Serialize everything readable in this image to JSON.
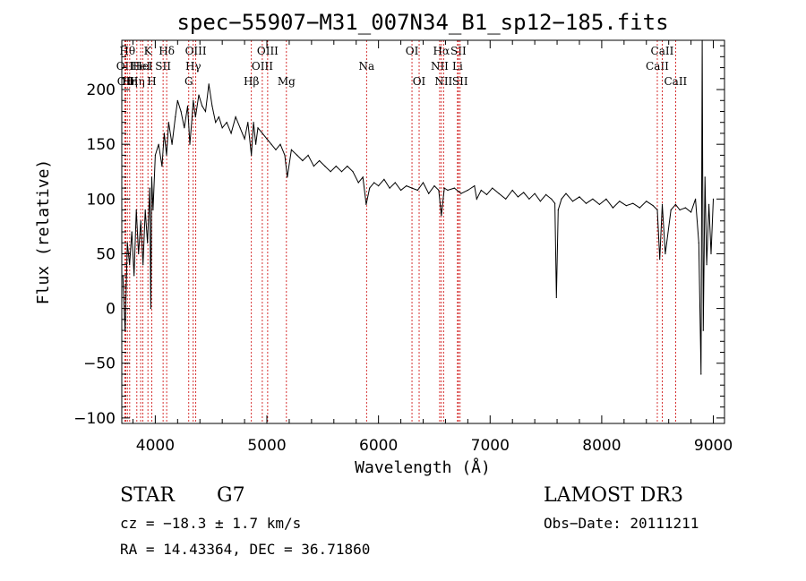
{
  "chart_data": {
    "type": "line",
    "title": "spec−55907−M31_007N34_B1_sp12−185.fits",
    "xlabel": "Wavelength (Å)",
    "ylabel": "Flux (relative)",
    "xlim": [
      3700,
      9100
    ],
    "ylim": [
      -105,
      245
    ],
    "xticks": [
      4000,
      5000,
      6000,
      7000,
      8000,
      9000
    ],
    "xtick_labels": [
      "4000",
      "5000",
      "6000",
      "7000",
      "8000",
      "9000"
    ],
    "yticks": [
      -100,
      -50,
      0,
      50,
      100,
      150,
      200
    ],
    "ytick_labels": [
      "−100",
      "−50",
      "0",
      "50",
      "100",
      "150",
      "200"
    ],
    "series": [
      {
        "name": "flux",
        "x": [
          3710,
          3730,
          3750,
          3770,
          3790,
          3810,
          3830,
          3850,
          3870,
          3890,
          3910,
          3930,
          3950,
          3960,
          3968,
          3980,
          4000,
          4030,
          4060,
          4080,
          4101,
          4120,
          4150,
          4180,
          4200,
          4230,
          4260,
          4290,
          4310,
          4330,
          4340,
          4360,
          4390,
          4420,
          4450,
          4480,
          4510,
          4540,
          4570,
          4600,
          4640,
          4680,
          4720,
          4760,
          4800,
          4830,
          4861,
          4880,
          4900,
          4920,
          4960,
          5000,
          5040,
          5080,
          5120,
          5160,
          5183,
          5220,
          5270,
          5320,
          5370,
          5420,
          5470,
          5520,
          5570,
          5620,
          5670,
          5720,
          5770,
          5820,
          5860,
          5890,
          5920,
          5960,
          6000,
          6050,
          6100,
          6150,
          6200,
          6250,
          6300,
          6350,
          6400,
          6450,
          6500,
          6540,
          6563,
          6590,
          6620,
          6680,
          6740,
          6800,
          6860,
          6880,
          6920,
          6970,
          7020,
          7080,
          7140,
          7200,
          7250,
          7300,
          7350,
          7400,
          7450,
          7500,
          7550,
          7580,
          7594,
          7610,
          7640,
          7680,
          7740,
          7800,
          7860,
          7920,
          7980,
          8040,
          8100,
          8160,
          8220,
          8280,
          8340,
          8400,
          8460,
          8498,
          8520,
          8542,
          8570,
          8620,
          8662,
          8700,
          8750,
          8800,
          8840,
          8870,
          8890,
          8900,
          8910,
          8925,
          8940,
          8960,
          8980,
          9000
        ],
        "y": [
          30,
          -20,
          60,
          40,
          70,
          30,
          90,
          50,
          80,
          40,
          90,
          60,
          110,
          0,
          120,
          90,
          140,
          150,
          130,
          160,
          140,
          170,
          150,
          175,
          190,
          180,
          165,
          185,
          150,
          175,
          190,
          175,
          195,
          185,
          180,
          205,
          185,
          170,
          175,
          165,
          170,
          160,
          175,
          165,
          155,
          170,
          140,
          170,
          150,
          165,
          160,
          155,
          150,
          145,
          150,
          140,
          120,
          145,
          140,
          135,
          140,
          130,
          135,
          130,
          125,
          130,
          125,
          130,
          125,
          115,
          120,
          95,
          110,
          115,
          112,
          118,
          110,
          115,
          108,
          112,
          110,
          108,
          115,
          105,
          112,
          108,
          85,
          110,
          108,
          110,
          105,
          108,
          112,
          100,
          108,
          104,
          110,
          105,
          100,
          108,
          102,
          106,
          100,
          105,
          98,
          104,
          100,
          96,
          10,
          90,
          100,
          105,
          98,
          102,
          96,
          100,
          95,
          100,
          92,
          98,
          94,
          96,
          92,
          98,
          94,
          90,
          45,
          95,
          50,
          90,
          95,
          90,
          92,
          88,
          100,
          60,
          -60,
          245,
          -20,
          120,
          40,
          95,
          50,
          100
        ]
      }
    ],
    "line_markers": [
      {
        "x": 3727,
        "label": "OII",
        "row": 2
      },
      {
        "x": 3735,
        "label": "OII",
        "row": 3
      },
      {
        "x": 3750,
        "label": "Hθ",
        "row": 1
      },
      {
        "x": 3771,
        "label": "Hη",
        "row": 3
      },
      {
        "x": 3835,
        "label": "Hη",
        "row": 3
      },
      {
        "x": 3869,
        "label": "HeI",
        "row": 2
      },
      {
        "x": 3889,
        "label": "HeI",
        "row": 2
      },
      {
        "x": 3934,
        "label": "K",
        "row": 1
      },
      {
        "x": 3969,
        "label": "H",
        "row": 3
      },
      {
        "x": 4070,
        "label": "SII",
        "row": 2
      },
      {
        "x": 4102,
        "label": "Hδ",
        "row": 1
      },
      {
        "x": 4300,
        "label": "G",
        "row": 3
      },
      {
        "x": 4340,
        "label": "Hγ",
        "row": 2
      },
      {
        "x": 4363,
        "label": "OIII",
        "row": 1
      },
      {
        "x": 4861,
        "label": "Hβ",
        "row": 3
      },
      {
        "x": 4959,
        "label": "OIII",
        "row": 2
      },
      {
        "x": 5007,
        "label": "OIII",
        "row": 1
      },
      {
        "x": 5175,
        "label": "Mg",
        "row": 3
      },
      {
        "x": 5893,
        "label": "Na",
        "row": 2
      },
      {
        "x": 6300,
        "label": "OI",
        "row": 1
      },
      {
        "x": 6364,
        "label": "OI",
        "row": 3
      },
      {
        "x": 6548,
        "label": "NII",
        "row": 2
      },
      {
        "x": 6563,
        "label": "Hα",
        "row": 1
      },
      {
        "x": 6583,
        "label": "NII",
        "row": 3
      },
      {
        "x": 6708,
        "label": "Li",
        "row": 2
      },
      {
        "x": 6716,
        "label": "SII",
        "row": 1
      },
      {
        "x": 6731,
        "label": "SII",
        "row": 3
      },
      {
        "x": 8498,
        "label": "CaII",
        "row": 2
      },
      {
        "x": 8542,
        "label": "CaII",
        "row": 1
      },
      {
        "x": 8662,
        "label": "CaII",
        "row": 3
      }
    ]
  },
  "info": {
    "class": "STAR",
    "subclass": "G7",
    "cz": "cz = −18.3 ± 1.7 km/s",
    "radec": "RA =  14.43364, DEC =  36.71860",
    "survey": "LAMOST DR3",
    "obsdate": "Obs−Date: 20111211"
  },
  "colors": {
    "axis": "#000000",
    "spectrum": "#000000",
    "marker": "#cc0000"
  }
}
